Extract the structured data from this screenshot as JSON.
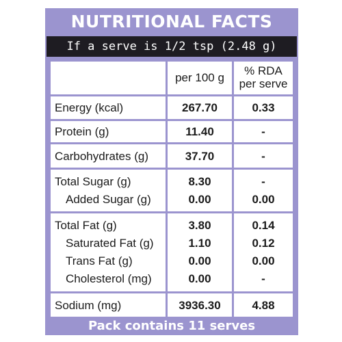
{
  "title": "NUTRITIONAL FACTS",
  "serving": "If a serve is 1/2 tsp (2.48 g)",
  "headers": {
    "per100": "per 100 g",
    "rda_line1": "% RDA",
    "rda_line2": "per serve"
  },
  "rows": [
    {
      "label": "Energy (kcal)",
      "per100": "267.70",
      "rda": "0.33"
    },
    {
      "label": "Protein (g)",
      "per100": "11.40",
      "rda": "-"
    },
    {
      "label": "Carbohydrates (g)",
      "per100": "37.70",
      "rda": "-"
    },
    {
      "label": "Total Sugar (g)",
      "per100": "8.30",
      "rda": "-"
    },
    {
      "label": "Added Sugar (g)",
      "per100": "0.00",
      "rda": "0.00"
    },
    {
      "label": "Total Fat (g)",
      "per100": "3.80",
      "rda": "0.14"
    },
    {
      "label": "Saturated Fat (g)",
      "per100": "1.10",
      "rda": "0.12"
    },
    {
      "label": "Trans Fat (g)",
      "per100": "0.00",
      "rda": "0.00"
    },
    {
      "label": "Cholesterol (mg)",
      "per100": "0.00",
      "rda": "-"
    },
    {
      "label": "Sodium (mg)",
      "per100": "3936.30",
      "rda": "4.88"
    }
  ],
  "footer": "Pack contains 11 serves",
  "colors": {
    "frame": "#9b94cf",
    "serving_bar": "#1e1c22",
    "cell": "#ffffff"
  }
}
